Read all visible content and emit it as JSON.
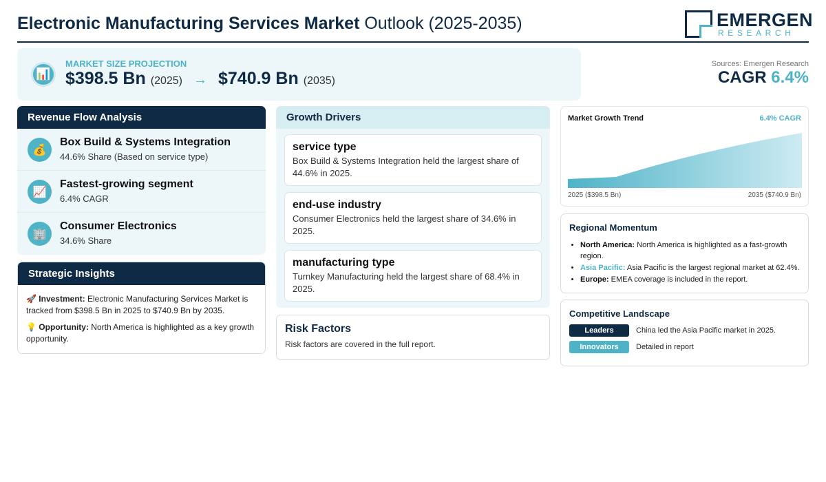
{
  "header": {
    "title_bold": "Electronic Manufacturing Services Market",
    "title_rest": " Outlook (2025-2035)",
    "logo_name": "EMERGEN",
    "logo_sub": "RESEARCH"
  },
  "projection": {
    "label": "MARKET SIZE PROJECTION",
    "icon": "chart-icon",
    "start_value": "$398.5 Bn",
    "start_year": "(2025)",
    "arrow": "→",
    "end_value": "$740.9 Bn",
    "end_year": "(2035)"
  },
  "summary": {
    "sources": "Sources: Emergen Research",
    "cagr_label": "CAGR",
    "cagr_value": "6.4%"
  },
  "revenue_flow": {
    "title": "Revenue Flow Analysis",
    "items": [
      {
        "icon": "money-bag-icon",
        "glyph": "💰",
        "title": "Box Build & Systems Integration",
        "sub": "44.6% Share (Based on service type)"
      },
      {
        "icon": "trend-up-icon",
        "glyph": "📈",
        "title": "Fastest-growing segment",
        "sub": "6.4% CAGR"
      },
      {
        "icon": "building-icon",
        "glyph": "🏢",
        "title": "Consumer Electronics",
        "sub": "34.6% Share"
      }
    ]
  },
  "strategic": {
    "title": "Strategic Insights",
    "investment_label": "Investment:",
    "investment_text": " Electronic Manufacturing Services Market is tracked from $398.5 Bn in 2025 to $740.9 Bn by 2035.",
    "opportunity_label": "Opportunity:",
    "opportunity_text": " North America is highlighted as a key growth opportunity."
  },
  "drivers": {
    "title": "Growth Drivers",
    "cards": [
      {
        "title": "service type",
        "text": "Box Build & Systems Integration held the largest share of 44.6% in 2025."
      },
      {
        "title": "end-use industry",
        "text": "Consumer Electronics held the largest share of 34.6% in 2025."
      },
      {
        "title": "manufacturing type",
        "text": "Turnkey Manufacturing held the largest share of 68.4% in 2025."
      }
    ]
  },
  "risk": {
    "title": "Risk Factors",
    "text": "Risk factors are covered in the full report."
  },
  "trend": {
    "title": "Market Growth Trend",
    "cagr": "6.4% CAGR",
    "start_label": "2025 ($398.5 Bn)",
    "end_label": "2035 ($740.9 Bn)",
    "accent": "#4fb3c8"
  },
  "chart_data": {
    "type": "area",
    "x": [
      2025,
      2035
    ],
    "values": [
      398.5,
      740.9
    ],
    "title": "Market Growth Trend"
  },
  "regional": {
    "title": "Regional Momentum",
    "items": [
      {
        "label": "North America:",
        "text": " North America is highlighted as a fast-growth region."
      },
      {
        "label": "Asia Pacific:",
        "text": " Asia Pacific is the largest regional market at 62.4%."
      },
      {
        "label": "Europe:",
        "text": " EMEA coverage is included in the report."
      }
    ]
  },
  "competitive": {
    "title": "Competitive Landscape",
    "rows": [
      {
        "tag": "Leaders",
        "text": "China led the Asia Pacific market in 2025.",
        "color": "#0f2a44"
      },
      {
        "tag": "Innovators",
        "text": "Detailed in report",
        "color": "#4fb3c8"
      }
    ]
  },
  "colors": {
    "navy": "#0f2a44",
    "accent": "#4fb3c8",
    "panel_bg": "#edf7f9"
  }
}
